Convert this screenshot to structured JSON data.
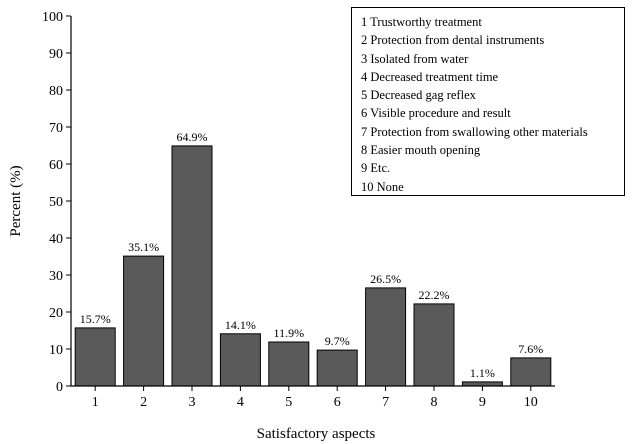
{
  "chart_data": {
    "type": "bar",
    "categories": [
      "1",
      "2",
      "3",
      "4",
      "5",
      "6",
      "7",
      "8",
      "9",
      "10"
    ],
    "values": [
      15.7,
      35.1,
      64.9,
      14.1,
      11.9,
      9.7,
      26.5,
      22.2,
      1.1,
      7.6
    ],
    "value_labels": [
      "15.7%",
      "35.1%",
      "64.9%",
      "14.1%",
      "11.9%",
      "9.7%",
      "26.5%",
      "22.2%",
      "1.1%",
      "7.6%"
    ],
    "xlabel": "Satisfactory aspects",
    "ylabel": "Percent (%)",
    "ylim": [
      0,
      100
    ],
    "yticks": [
      0,
      10,
      20,
      30,
      40,
      50,
      60,
      70,
      80,
      90,
      100
    ],
    "grid": false,
    "bar_color": "#5a5a5a",
    "legend_placement": "top-right",
    "legend": [
      "1 Trustworthy treatment",
      "2 Protection from dental instruments",
      "3 Isolated from water",
      "4 Decreased treatment time",
      "5 Decreased gag reflex",
      "6 Visible procedure and result",
      "7 Protection from swallowing other materials",
      "8 Easier mouth opening",
      "9 Etc.",
      "10 None"
    ]
  }
}
